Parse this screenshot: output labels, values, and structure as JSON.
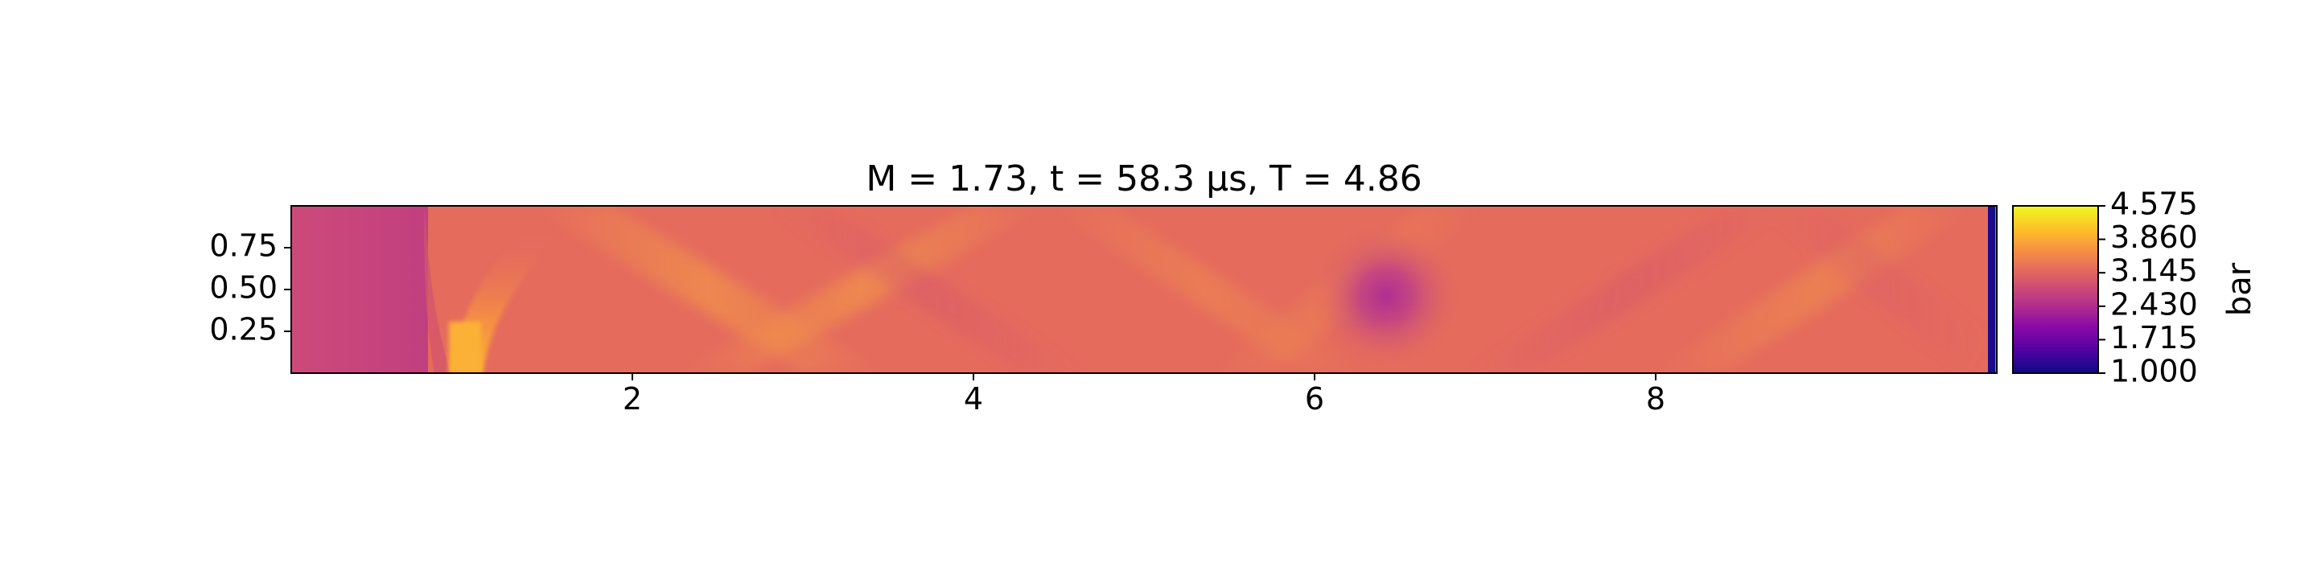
{
  "chart_data": {
    "type": "heatmap",
    "title": "M = 1.73, t = 58.3 μs, T = 4.86",
    "xlabel": "",
    "ylabel": "",
    "xlim": [
      0,
      10
    ],
    "ylim": [
      0,
      1
    ],
    "x_ticks": [
      2,
      4,
      6,
      8
    ],
    "x_tick_labels": [
      "2",
      "4",
      "6",
      "8"
    ],
    "y_ticks": [
      0.25,
      0.5,
      0.75
    ],
    "y_tick_labels": [
      "0.25",
      "0.50",
      "0.75"
    ],
    "colormap": "plasma",
    "colorbar": {
      "label": "bar",
      "range": [
        1.0,
        4.575
      ],
      "ticks": [
        1.0,
        1.715,
        2.43,
        3.145,
        3.86,
        4.575
      ],
      "tick_labels": [
        "1.000",
        "1.715",
        "2.430",
        "3.145",
        "3.860",
        "4.575"
      ]
    },
    "field_features": {
      "background_value": 3.3,
      "left_region": {
        "x_range": [
          0,
          0.8
        ],
        "value_low": 2.7,
        "value_high": 3.1
      },
      "shock_front_left": {
        "x": 0.95,
        "value": 4.2
      },
      "low_pressure_spot": {
        "x": 6.42,
        "y": 0.45,
        "value": 2.4
      },
      "shock_front_right": {
        "x": 9.97,
        "value": 1.0
      }
    },
    "grid": false
  }
}
